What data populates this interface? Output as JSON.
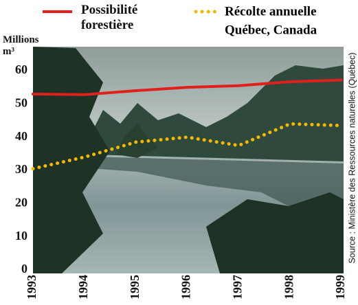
{
  "chart_data": {
    "type": "line",
    "y_label": "Millions m³",
    "subtitle": "Québec, Canada",
    "source": "Source : Ministère des Ressources naturelles (Québec)",
    "x": [
      1993,
      1994,
      1995,
      1996,
      1997,
      1998,
      1999
    ],
    "xlim": [
      1993,
      1999
    ],
    "xticks": [
      1993,
      1994,
      1995,
      1996,
      1997,
      1998,
      1999
    ],
    "ylim": [
      0,
      60
    ],
    "yticks": [
      0,
      10,
      20,
      30,
      40,
      50,
      60
    ],
    "series": [
      {
        "name": "Possibilité forestière",
        "color": "#e0201c",
        "style": "solid",
        "values": [
          53,
          52.8,
          54,
          55,
          55.5,
          56.7,
          57.2
        ]
      },
      {
        "name": "Récolte annuelle",
        "color": "#f5b800",
        "style": "dotted",
        "values": [
          30.5,
          34,
          38.5,
          40,
          37.5,
          44,
          43.5
        ]
      }
    ]
  }
}
